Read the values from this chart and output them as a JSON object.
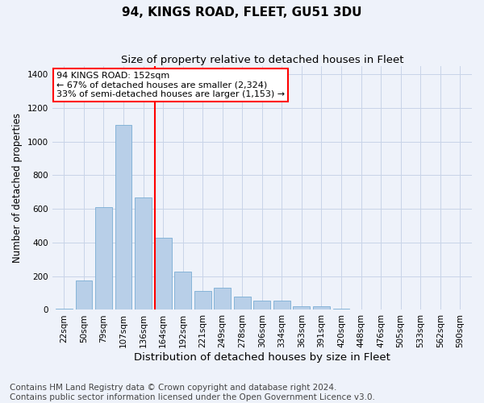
{
  "title": "94, KINGS ROAD, FLEET, GU51 3DU",
  "subtitle": "Size of property relative to detached houses in Fleet",
  "xlabel": "Distribution of detached houses by size in Fleet",
  "ylabel": "Number of detached properties",
  "categories": [
    "22sqm",
    "50sqm",
    "79sqm",
    "107sqm",
    "136sqm",
    "164sqm",
    "192sqm",
    "221sqm",
    "249sqm",
    "278sqm",
    "306sqm",
    "334sqm",
    "363sqm",
    "391sqm",
    "420sqm",
    "448sqm",
    "476sqm",
    "505sqm",
    "533sqm",
    "562sqm",
    "590sqm"
  ],
  "values": [
    5,
    175,
    610,
    1100,
    670,
    430,
    225,
    110,
    130,
    80,
    55,
    55,
    20,
    20,
    5,
    2,
    0,
    0,
    0,
    0,
    0
  ],
  "bar_color": "#b8cfe8",
  "bar_edge_color": "#7aadd4",
  "annotation_text_line1": "94 KINGS ROAD: 152sqm",
  "annotation_text_line2": "← 67% of detached houses are smaller (2,324)",
  "annotation_text_line3": "33% of semi-detached houses are larger (1,153) →",
  "annotation_box_facecolor": "white",
  "annotation_box_edgecolor": "red",
  "red_line_color": "red",
  "ylim": [
    0,
    1450
  ],
  "yticks": [
    0,
    200,
    400,
    600,
    800,
    1000,
    1200,
    1400
  ],
  "grid_color": "#c8d4e8",
  "background_color": "#eef2fa",
  "footer_line1": "Contains HM Land Registry data © Crown copyright and database right 2024.",
  "footer_line2": "Contains public sector information licensed under the Open Government Licence v3.0.",
  "title_fontsize": 11,
  "subtitle_fontsize": 9.5,
  "xlabel_fontsize": 9.5,
  "ylabel_fontsize": 8.5,
  "tick_fontsize": 7.5,
  "footer_fontsize": 7.5,
  "annotation_fontsize": 8
}
